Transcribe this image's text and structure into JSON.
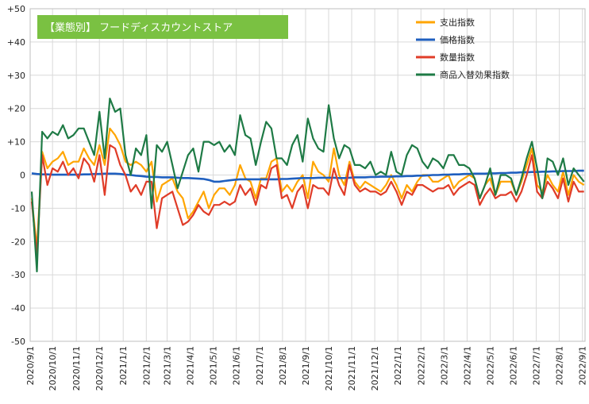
{
  "chart_data": {
    "type": "line",
    "title": "【業態別】 フードディスカウントストア",
    "xlabel": "",
    "ylabel": "",
    "ylim": [
      -50,
      50
    ],
    "y_ticks": [
      50,
      40,
      30,
      20,
      10,
      0,
      -10,
      -20,
      -30,
      -40,
      -50
    ],
    "y_tick_labels": [
      "+50",
      "+40",
      "+30",
      "+20",
      "+10",
      "0",
      "-10",
      "-20",
      "-30",
      "-40",
      "-50"
    ],
    "x_tick_labels": [
      "2020/9/1",
      "2020/10/1",
      "2020/11/1",
      "2020/12/1",
      "2021/1/1",
      "2021/2/1",
      "2021/3/1",
      "2021/4/1",
      "2021/5/1",
      "2021/6/1",
      "2021/7/1",
      "2021/8/1",
      "2021/9/1",
      "2021/10/1",
      "2021/11/1",
      "2021/12/1",
      "2022/1/1",
      "2022/2/1",
      "2022/3/1",
      "2022/4/1",
      "2022/5/1",
      "2022/6/1",
      "2022/7/1",
      "2022/8/1",
      "2022/9/1"
    ],
    "x_ticks": [
      0,
      4.29,
      8.86,
      13.29,
      17.86,
      22.29,
      26.29,
      30.71,
      35.14,
      39.57,
      44.0,
      48.43,
      52.86,
      57.29,
      61.71,
      66.14,
      70.57,
      75.0,
      79.43,
      83.86,
      88.29,
      92.71,
      97.14,
      101.57,
      106.0
    ],
    "x": [
      0.3,
      1.3,
      2.3,
      3.3,
      4.3,
      5.3,
      6.3,
      7.3,
      8.3,
      9.3,
      10.3,
      11.3,
      12.3,
      13.3,
      14.3,
      15.3,
      16.3,
      17.3,
      18.3,
      19.3,
      20.3,
      21.3,
      22.3,
      23.3,
      24.3,
      25.3,
      26.3,
      27.3,
      28.3,
      29.3,
      30.3,
      31.3,
      32.3,
      33.3,
      34.3,
      35.3,
      36.3,
      37.3,
      38.3,
      39.3,
      40.3,
      41.3,
      42.3,
      43.3,
      44.3,
      45.3,
      46.3,
      47.3,
      48.3,
      49.3,
      50.3,
      51.3,
      52.3,
      53.3,
      54.3,
      55.3,
      56.3,
      57.3,
      58.3,
      59.3,
      60.3,
      61.3,
      62.3,
      63.3,
      64.3,
      65.3,
      66.3,
      67.3,
      68.3,
      69.3,
      70.3,
      71.3,
      72.3,
      73.3,
      74.3,
      75.3,
      76.3,
      77.3,
      78.3,
      79.3,
      80.3,
      81.3,
      82.3,
      83.3,
      84.3,
      85.3,
      86.3,
      87.3,
      88.3,
      89.3,
      90.3,
      91.3,
      92.3,
      93.3,
      94.3,
      95.3,
      96.3,
      97.3,
      98.3,
      99.3,
      100.3,
      101.3,
      102.3,
      103.3,
      104.3,
      105.3,
      106.3
    ],
    "series": [
      {
        "name": "支出指数",
        "color": "#FFA500",
        "values": [
          -7,
          -22,
          7,
          2,
          4,
          5,
          7,
          3,
          4,
          4,
          8,
          5,
          3,
          9,
          3,
          14,
          12,
          9,
          4,
          3,
          4,
          3,
          1,
          4,
          -8,
          -3,
          -2,
          -1,
          -5,
          -7,
          -13,
          -11,
          -8,
          -5,
          -10,
          -6,
          -4,
          -4,
          -6,
          -3,
          3,
          -1,
          -2,
          -7,
          -1,
          -1,
          4,
          5,
          -5,
          -3,
          -5,
          -2,
          0,
          -7,
          4,
          1,
          0,
          -2,
          8,
          0,
          -3,
          4,
          -2,
          -4,
          -2,
          -3,
          -4,
          -5,
          -3,
          0,
          -3,
          -7,
          -3,
          -5,
          -2,
          0,
          0,
          -2,
          -2,
          -1,
          0,
          -4,
          -2,
          -1,
          0,
          -1,
          -7,
          -3,
          -1,
          -6,
          -2,
          -2,
          -2,
          -6,
          -2,
          3,
          8,
          -3,
          -5,
          0,
          -3,
          -5,
          1,
          -6,
          0,
          -2,
          -3
        ]
      },
      {
        "name": "価格指数",
        "color": "#1F5FBF",
        "values": [
          0.5,
          0.3,
          0.2,
          0.2,
          0.1,
          0.1,
          0.1,
          0.1,
          0.1,
          0.1,
          0.2,
          0.2,
          0.3,
          0.3,
          0.4,
          0.4,
          0.4,
          0.3,
          0.1,
          0.0,
          -0.2,
          -0.3,
          -0.5,
          -0.6,
          -0.6,
          -0.7,
          -0.7,
          -0.7,
          -0.8,
          -0.9,
          -0.9,
          -1.0,
          -1.1,
          -1.2,
          -1.5,
          -2.0,
          -2.0,
          -1.8,
          -1.6,
          -1.4,
          -1.3,
          -1.3,
          -1.3,
          -1.3,
          -1.3,
          -1.3,
          -1.3,
          -1.3,
          -1.2,
          -1.2,
          -1.1,
          -1.0,
          -0.9,
          -0.9,
          -0.9,
          -0.8,
          -0.8,
          -0.8,
          -0.8,
          -0.9,
          -0.9,
          -0.8,
          -0.7,
          -0.7,
          -0.7,
          -0.6,
          -0.6,
          -0.5,
          -0.5,
          -0.5,
          -0.4,
          -0.4,
          -0.3,
          -0.3,
          -0.2,
          -0.2,
          -0.1,
          0.0,
          0.0,
          0.1,
          0.1,
          0.2,
          0.2,
          0.3,
          0.3,
          0.4,
          0.4,
          0.4,
          0.5,
          0.5,
          0.6,
          0.6,
          0.7,
          0.7,
          0.8,
          0.8,
          0.9,
          0.9,
          1.0,
          1.0,
          1.1,
          1.1,
          1.2,
          1.2,
          1.2,
          1.3,
          1.3
        ]
      },
      {
        "name": "数量指数",
        "color": "#E03C28",
        "values": [
          -8,
          -24,
          6,
          -3,
          2,
          1,
          4,
          0,
          2,
          -1,
          5,
          3,
          -2,
          6,
          -6,
          9,
          8,
          3,
          0,
          -5,
          -3,
          -6,
          -2,
          -2,
          -16,
          -7,
          -6,
          -5,
          -10,
          -15,
          -14,
          -12,
          -9,
          -11,
          -12,
          -9,
          -9,
          -8,
          -9,
          -8,
          -3,
          -6,
          -4,
          -9,
          -3,
          -4,
          2,
          3,
          -7,
          -6,
          -10,
          -5,
          -3,
          -10,
          -3,
          -4,
          -4,
          -6,
          2,
          -3,
          -6,
          3,
          -3,
          -5,
          -4,
          -5,
          -5,
          -6,
          -5,
          -2,
          -5,
          -9,
          -5,
          -6,
          -3,
          -3,
          -4,
          -5,
          -4,
          -4,
          -3,
          -6,
          -4,
          -3,
          -2,
          -3,
          -9,
          -6,
          -4,
          -7,
          -6,
          -6,
          -5,
          -8,
          -5,
          0,
          6,
          -5,
          -7,
          -2,
          -4,
          -7,
          -1,
          -8,
          -2,
          -5,
          -5
        ]
      },
      {
        "name": "商品入替効果指数",
        "color": "#1E7A45",
        "values": [
          -5,
          -29,
          13,
          11,
          13,
          12,
          15,
          11,
          12,
          14,
          14,
          10,
          6,
          19,
          5,
          23,
          19,
          20,
          6,
          0,
          8,
          6,
          12,
          -10,
          9,
          7,
          10,
          3,
          -4,
          1,
          6,
          8,
          1,
          10,
          10,
          9,
          10,
          7,
          9,
          6,
          18,
          12,
          11,
          3,
          10,
          16,
          14,
          5,
          5,
          3,
          9,
          12,
          4,
          17,
          11,
          8,
          7,
          21,
          11,
          5,
          9,
          8,
          3,
          3,
          2,
          4,
          0,
          1,
          0,
          7,
          1,
          0,
          6,
          9,
          8,
          4,
          2,
          5,
          4,
          2,
          6,
          6,
          3,
          3,
          2,
          -1,
          -7,
          -3,
          2,
          -6,
          0,
          0,
          -1,
          -6,
          -1,
          5,
          10,
          2,
          -7,
          5,
          4,
          0,
          5,
          -3,
          2,
          0,
          -2
        ]
      }
    ],
    "legend_position": "top-right",
    "grid": true
  }
}
